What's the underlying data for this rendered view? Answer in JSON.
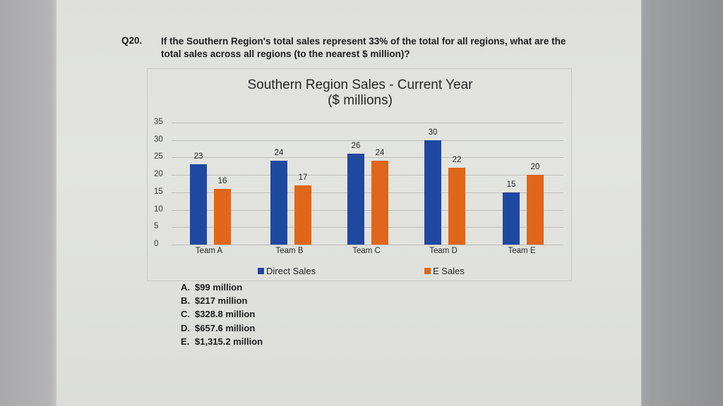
{
  "question": {
    "number": "Q20.",
    "text": "If the Southern Region's total sales represent 33% of the total for all regions, what are the total sales across all regions (to the nearest $ million)?"
  },
  "chart": {
    "title_line1": "Southern Region Sales - Current Year",
    "title_line2": "($ millions)",
    "y_ticks": [
      "35",
      "30",
      "25",
      "20",
      "15",
      "10",
      "5",
      "0"
    ],
    "legend": {
      "direct": "Direct Sales",
      "esales": "E Sales"
    },
    "colors": {
      "direct": "#1f48a0",
      "esales": "#e0661a"
    },
    "teams": [
      {
        "label": "Team A",
        "direct": "23",
        "esales": "16"
      },
      {
        "label": "Team B",
        "direct": "24",
        "esales": "17"
      },
      {
        "label": "Team C",
        "direct": "26",
        "esales": "24"
      },
      {
        "label": "Team D",
        "direct": "30",
        "esales": "22"
      },
      {
        "label": "Team E",
        "direct": "15",
        "esales": "20"
      }
    ]
  },
  "answers": [
    {
      "letter": "A.",
      "text": "$99 million"
    },
    {
      "letter": "B.",
      "text": "$217 million"
    },
    {
      "letter": "C.",
      "text": "$328.8 million"
    },
    {
      "letter": "D.",
      "text": "$657.6 million"
    },
    {
      "letter": "E.",
      "text": "$1,315.2 million"
    }
  ],
  "chart_data": {
    "type": "bar",
    "title": "Southern Region Sales - Current Year ($ millions)",
    "categories": [
      "Team A",
      "Team B",
      "Team C",
      "Team D",
      "Team E"
    ],
    "series": [
      {
        "name": "Direct Sales",
        "values": [
          23,
          24,
          26,
          30,
          15
        ],
        "color": "#1f48a0"
      },
      {
        "name": "E Sales",
        "values": [
          16,
          17,
          24,
          22,
          20
        ],
        "color": "#e0661a"
      }
    ],
    "xlabel": "",
    "ylabel": "",
    "ylim": [
      0,
      35
    ],
    "yticks": [
      0,
      5,
      10,
      15,
      20,
      25,
      30,
      35
    ],
    "grid": true,
    "legend_position": "bottom",
    "data_labels": true
  }
}
